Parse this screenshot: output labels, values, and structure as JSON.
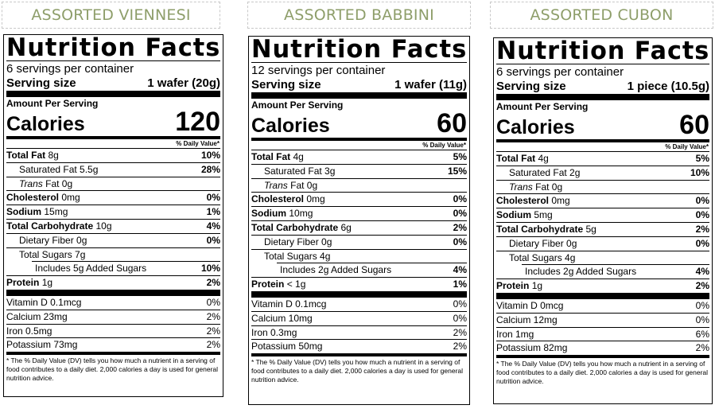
{
  "theme": {
    "title_color": "#8e9e6a"
  },
  "labels": [
    {
      "product_title": "ASSORTED VIENNESI",
      "heading": "Nutrition Facts",
      "servings": "6 servings per container",
      "serving_size_label": "Serving size",
      "serving_size_value": "1 wafer (20g)",
      "amount_per_serving": "Amount Per Serving",
      "calories_label": "Calories",
      "calories_value": "120",
      "dv_header": "% Daily Value*",
      "total_fat": {
        "label": "Total Fat",
        "amount": "8g",
        "dv": "10%"
      },
      "saturated_fat": {
        "label": "Saturated Fat 5.5g",
        "dv": "28%"
      },
      "trans_fat": {
        "label_italic": "Trans",
        "label_rest": " Fat 0g"
      },
      "cholesterol": {
        "label": "Cholesterol",
        "amount": "0mg",
        "dv": "0%"
      },
      "sodium": {
        "label": "Sodium",
        "amount": "15mg",
        "dv": "1%"
      },
      "total_carb": {
        "label": "Total Carbohydrate",
        "amount": "10g",
        "dv": "4%"
      },
      "fiber": {
        "label": "Dietary Fiber 0g",
        "dv": "0%"
      },
      "sugars": {
        "label": "Total Sugars 7g"
      },
      "added_sugars": {
        "label": "Includes 5g Added Sugars",
        "dv": "10%"
      },
      "protein": {
        "label": "Protein",
        "amount": "1g",
        "dv": "2%"
      },
      "vitamin_d": {
        "label": "Vitamin D 0.1mcg",
        "dv": "0%"
      },
      "calcium": {
        "label": "Calcium 23mg",
        "dv": "2%"
      },
      "iron": {
        "label": "Iron 0.5mg",
        "dv": "2%"
      },
      "potassium": {
        "label": "Potassium 73mg",
        "dv": "2%"
      },
      "footnote": "* The % Daily Value (DV) tells you how much a nutrient in a serving of food contributes to a daily diet. 2,000 calories a day is used for general nutrition advice."
    },
    {
      "product_title": "ASSORTED BABBINI",
      "heading": "Nutrition Facts",
      "servings": "12 servings per container",
      "serving_size_label": "Serving size",
      "serving_size_value": "1 wafer (11g)",
      "amount_per_serving": "Amount Per Serving",
      "calories_label": "Calories",
      "calories_value": "60",
      "dv_header": "% Daily Value*",
      "total_fat": {
        "label": "Total Fat",
        "amount": "4g",
        "dv": "5%"
      },
      "saturated_fat": {
        "label": "Saturated Fat 3g",
        "dv": "15%"
      },
      "trans_fat": {
        "label_italic": "Trans",
        "label_rest": " Fat 0g"
      },
      "cholesterol": {
        "label": "Cholesterol",
        "amount": "0mg",
        "dv": "0%"
      },
      "sodium": {
        "label": "Sodium",
        "amount": "10mg",
        "dv": "0%"
      },
      "total_carb": {
        "label": "Total Carbohydrate",
        "amount": "6g",
        "dv": "2%"
      },
      "fiber": {
        "label": "Dietary Fiber 0g",
        "dv": "0%"
      },
      "sugars": {
        "label": "Total Sugars 4g"
      },
      "added_sugars": {
        "label": "Includes 2g Added Sugars",
        "dv": "4%"
      },
      "protein": {
        "label": "Protein",
        "amount": "< 1g",
        "dv": "1%"
      },
      "vitamin_d": {
        "label": "Vitamin D 0.1mcg",
        "dv": "0%"
      },
      "calcium": {
        "label": "Calcium 10mg",
        "dv": "0%"
      },
      "iron": {
        "label": "Iron 0.3mg",
        "dv": "2%"
      },
      "potassium": {
        "label": "Potassium 50mg",
        "dv": "2%"
      },
      "footnote": "* The % Daily Value (DV) tells you how much a nutrient in a serving of food contributes to a daily diet. 2,000 calories a day is used for general nutrition advice."
    },
    {
      "product_title": "ASSORTED CUBON",
      "heading": "Nutrition Facts",
      "servings": "6 servings per container",
      "serving_size_label": "Serving size",
      "serving_size_value": "1 piece (10.5g)",
      "amount_per_serving": "Amount Per Serving",
      "calories_label": "Calories",
      "calories_value": "60",
      "dv_header": "% Daily Value*",
      "total_fat": {
        "label": "Total Fat",
        "amount": "4g",
        "dv": "5%"
      },
      "saturated_fat": {
        "label": "Saturated Fat 2g",
        "dv": "10%"
      },
      "trans_fat": {
        "label_italic": "Trans",
        "label_rest": " Fat 0g"
      },
      "cholesterol": {
        "label": "Cholesterol",
        "amount": "0mg",
        "dv": "0%"
      },
      "sodium": {
        "label": "Sodium",
        "amount": "5mg",
        "dv": "0%"
      },
      "total_carb": {
        "label": "Total Carbohydrate",
        "amount": "5g",
        "dv": "2%"
      },
      "fiber": {
        "label": "Dietary Fiber 0g",
        "dv": "0%"
      },
      "sugars": {
        "label": "Total Sugars 4g"
      },
      "added_sugars": {
        "label": "Includes 2g Added Sugars",
        "dv": "4%"
      },
      "protein": {
        "label": "Protein",
        "amount": "1g",
        "dv": "2%"
      },
      "vitamin_d": {
        "label": "Vitamin D 0mcg",
        "dv": "0%"
      },
      "calcium": {
        "label": "Calcium 12mg",
        "dv": "0%"
      },
      "iron": {
        "label": "Iron 1mg",
        "dv": "6%"
      },
      "potassium": {
        "label": "Potassium 82mg",
        "dv": "2%"
      },
      "footnote": "* The % Daily Value (DV) tells you how much a nutrient in a serving of food contributes to a daily diet. 2,000 calories a day is used for general nutrition advice."
    }
  ]
}
